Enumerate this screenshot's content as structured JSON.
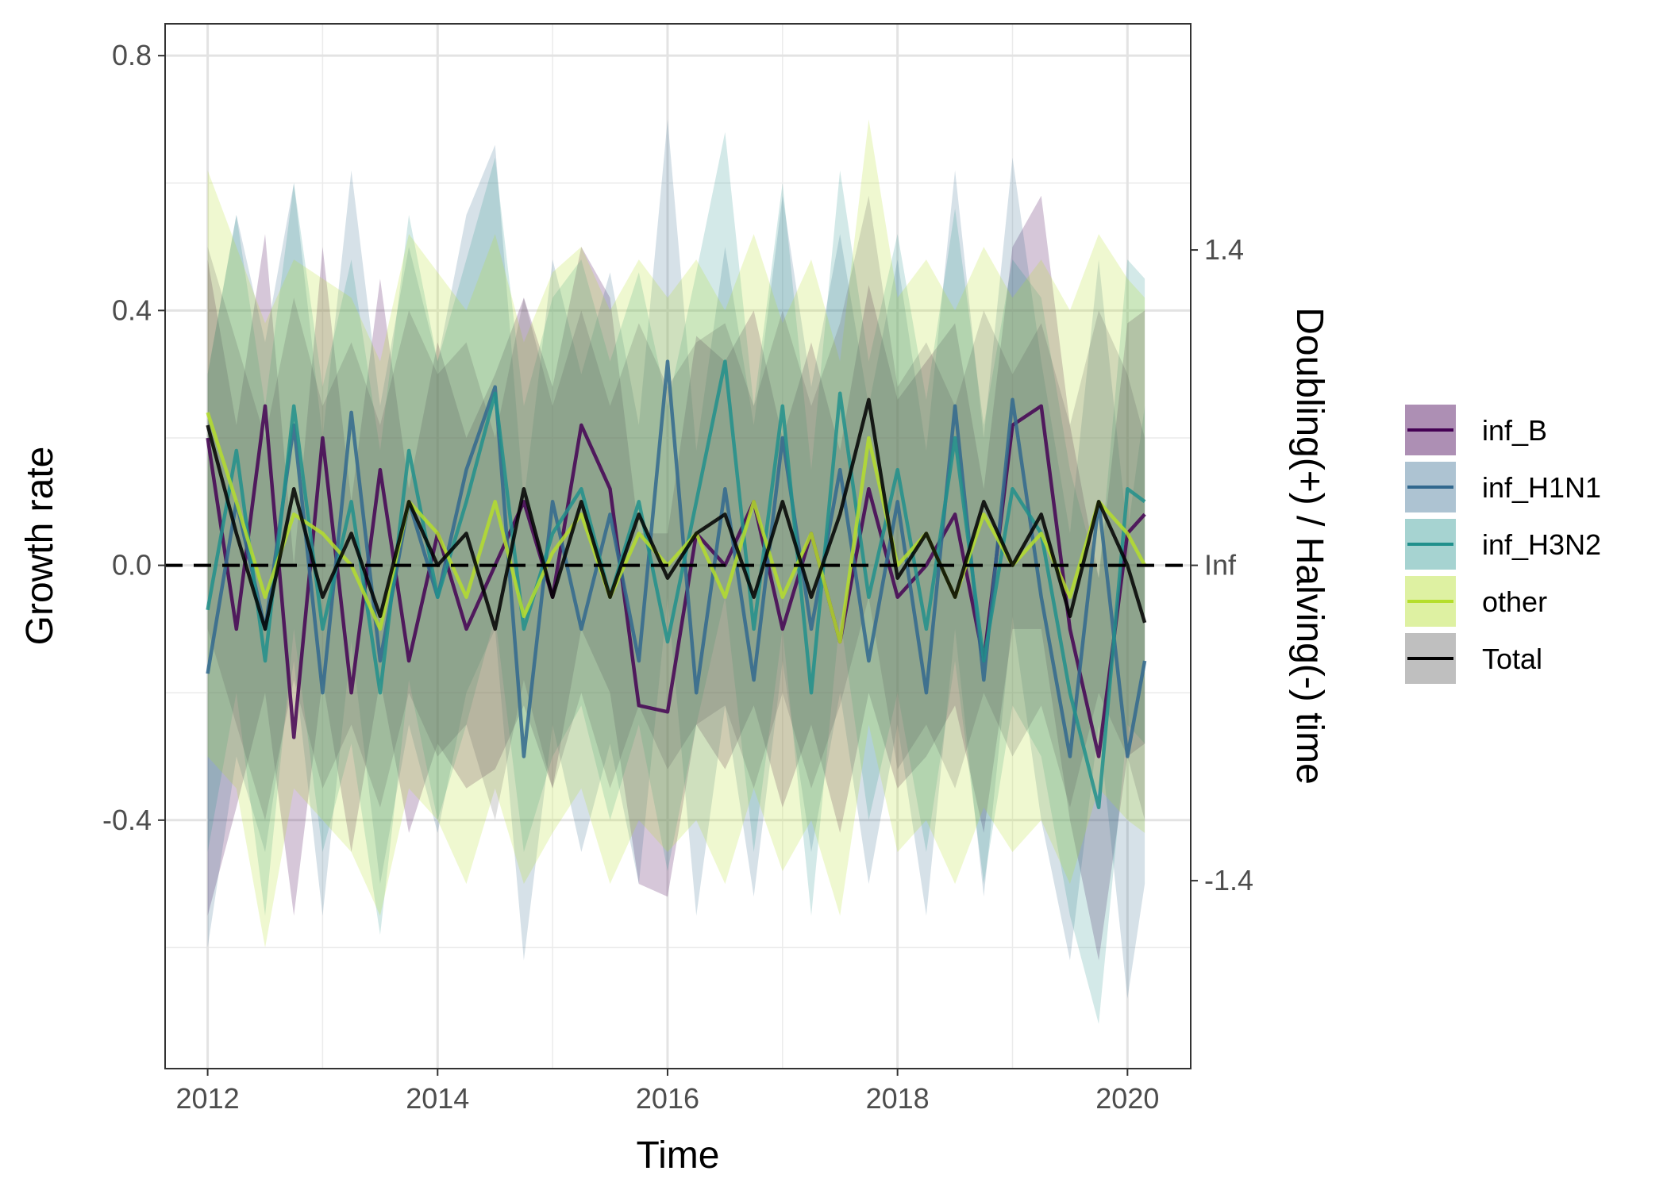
{
  "chart_data": {
    "type": "line",
    "xlabel": "Time",
    "ylabel": "Growth rate",
    "y2label": "Doubling(+) / Halving(-) time",
    "xlim": [
      2011.63,
      2020.55
    ],
    "ylim": [
      -0.79,
      0.85
    ],
    "x_ticks": [
      2012,
      2014,
      2016,
      2018,
      2020
    ],
    "x_tick_labels": [
      "2012",
      "2014",
      "2016",
      "2018",
      "2020"
    ],
    "y_ticks": [
      -0.4,
      0.0,
      0.4,
      0.8
    ],
    "y_tick_labels": [
      "-0.4",
      "0.0",
      "0.4",
      "0.8"
    ],
    "y2_ticks": [
      -0.495,
      0.0,
      0.495
    ],
    "y2_tick_labels": [
      "-1.4",
      "Inf",
      "1.4"
    ],
    "reference_line": {
      "y": 0,
      "style": "dashed",
      "color": "#000000"
    },
    "grid": true,
    "legend": {
      "position": "right",
      "entries": [
        "inf_B",
        "inf_H1N1",
        "inf_H3N2",
        "other",
        "Total"
      ]
    },
    "series": [
      {
        "name": "inf_B",
        "color": "#440154",
        "fill": "#440154",
        "fill_opacity": 0.22,
        "x": [
          2012.0,
          2012.25,
          2012.5,
          2012.75,
          2013.0,
          2013.25,
          2013.5,
          2013.75,
          2014.0,
          2014.25,
          2014.5,
          2014.75,
          2015.0,
          2015.25,
          2015.5,
          2015.75,
          2016.0,
          2016.25,
          2016.5,
          2016.75,
          2017.0,
          2017.25,
          2017.5,
          2017.75,
          2018.0,
          2018.25,
          2018.5,
          2018.75,
          2019.0,
          2019.25,
          2019.5,
          2019.75,
          2020.0,
          2020.15
        ],
        "y": [
          0.2,
          -0.1,
          0.25,
          -0.27,
          0.2,
          -0.2,
          0.15,
          -0.15,
          0.05,
          -0.1,
          0.0,
          0.1,
          -0.05,
          0.22,
          0.12,
          -0.22,
          -0.23,
          0.05,
          0.0,
          0.1,
          -0.1,
          0.05,
          -0.12,
          0.12,
          -0.05,
          0.0,
          0.08,
          -0.15,
          0.22,
          0.25,
          -0.1,
          -0.3,
          0.05,
          0.08
        ],
        "lower": [
          -0.55,
          -0.38,
          -0.2,
          -0.55,
          -0.18,
          -0.45,
          -0.18,
          -0.42,
          -0.28,
          -0.35,
          -0.32,
          -0.22,
          -0.35,
          -0.1,
          -0.2,
          -0.5,
          -0.52,
          -0.25,
          -0.32,
          -0.22,
          -0.38,
          -0.25,
          -0.42,
          -0.2,
          -0.35,
          -0.3,
          -0.22,
          -0.42,
          -0.1,
          -0.1,
          -0.4,
          -0.62,
          -0.3,
          -0.28
        ],
        "upper": [
          0.48,
          0.22,
          0.52,
          0.0,
          0.5,
          0.1,
          0.45,
          0.12,
          0.35,
          0.2,
          0.3,
          0.42,
          0.28,
          0.5,
          0.42,
          0.05,
          0.05,
          0.36,
          0.32,
          0.4,
          0.2,
          0.35,
          0.18,
          0.44,
          0.26,
          0.32,
          0.38,
          0.12,
          0.5,
          0.58,
          0.22,
          -0.02,
          0.38,
          0.4
        ]
      },
      {
        "name": "inf_H1N1",
        "color": "#31688e",
        "fill": "#31688e",
        "fill_opacity": 0.2,
        "x": [
          2012.0,
          2012.25,
          2012.5,
          2012.75,
          2013.0,
          2013.25,
          2013.5,
          2013.75,
          2014.0,
          2014.25,
          2014.5,
          2014.75,
          2015.0,
          2015.25,
          2015.5,
          2015.75,
          2016.0,
          2016.25,
          2016.5,
          2016.75,
          2017.0,
          2017.25,
          2017.5,
          2017.75,
          2018.0,
          2018.25,
          2018.5,
          2018.75,
          2019.0,
          2019.25,
          2019.5,
          2019.75,
          2020.0,
          2020.15
        ],
        "y": [
          -0.17,
          0.1,
          -0.1,
          0.22,
          -0.2,
          0.24,
          -0.15,
          0.1,
          -0.05,
          0.15,
          0.28,
          -0.3,
          0.1,
          -0.1,
          0.08,
          -0.15,
          0.32,
          -0.2,
          0.12,
          -0.18,
          0.2,
          -0.1,
          0.15,
          -0.15,
          0.1,
          -0.2,
          0.25,
          -0.18,
          0.26,
          -0.05,
          -0.3,
          0.1,
          -0.3,
          -0.15
        ],
        "lower": [
          -0.6,
          -0.3,
          -0.45,
          -0.15,
          -0.55,
          -0.12,
          -0.5,
          -0.25,
          -0.42,
          -0.2,
          -0.1,
          -0.62,
          -0.25,
          -0.45,
          -0.28,
          -0.5,
          -0.05,
          -0.55,
          -0.22,
          -0.52,
          -0.15,
          -0.45,
          -0.2,
          -0.5,
          -0.25,
          -0.55,
          -0.1,
          -0.52,
          -0.08,
          -0.4,
          -0.62,
          -0.25,
          -0.68,
          -0.5
        ],
        "upper": [
          0.3,
          0.55,
          0.35,
          0.6,
          0.2,
          0.62,
          0.25,
          0.5,
          0.32,
          0.55,
          0.66,
          0.1,
          0.48,
          0.3,
          0.46,
          0.22,
          0.7,
          0.18,
          0.5,
          0.22,
          0.58,
          0.28,
          0.52,
          0.25,
          0.48,
          0.18,
          0.62,
          0.2,
          0.64,
          0.32,
          0.05,
          0.48,
          0.05,
          0.25
        ]
      },
      {
        "name": "inf_H3N2",
        "color": "#21908c",
        "fill": "#21908c",
        "fill_opacity": 0.2,
        "x": [
          2012.0,
          2012.25,
          2012.5,
          2012.75,
          2013.0,
          2013.25,
          2013.5,
          2013.75,
          2014.0,
          2014.25,
          2014.5,
          2014.75,
          2015.0,
          2015.25,
          2015.5,
          2015.75,
          2016.0,
          2016.25,
          2016.5,
          2016.75,
          2017.0,
          2017.25,
          2017.5,
          2017.75,
          2018.0,
          2018.25,
          2018.5,
          2018.75,
          2019.0,
          2019.25,
          2019.5,
          2019.75,
          2020.0,
          2020.15
        ],
        "y": [
          -0.07,
          0.18,
          -0.15,
          0.25,
          -0.1,
          0.1,
          -0.2,
          0.18,
          -0.05,
          0.1,
          0.27,
          -0.1,
          0.05,
          0.12,
          -0.05,
          0.1,
          -0.12,
          0.1,
          0.32,
          -0.1,
          0.25,
          -0.2,
          0.27,
          -0.05,
          0.15,
          -0.1,
          0.2,
          -0.15,
          0.12,
          0.05,
          -0.2,
          -0.38,
          0.12,
          0.1
        ],
        "lower": [
          -0.45,
          -0.2,
          -0.55,
          -0.1,
          -0.45,
          -0.28,
          -0.58,
          -0.18,
          -0.4,
          -0.25,
          -0.08,
          -0.45,
          -0.3,
          -0.22,
          -0.4,
          -0.25,
          -0.48,
          -0.25,
          -0.05,
          -0.45,
          -0.1,
          -0.55,
          -0.08,
          -0.4,
          -0.2,
          -0.45,
          -0.15,
          -0.5,
          -0.22,
          -0.3,
          -0.55,
          -0.72,
          -0.25,
          -0.28
        ],
        "upper": [
          0.3,
          0.55,
          0.25,
          0.6,
          0.28,
          0.48,
          0.18,
          0.55,
          0.32,
          0.48,
          0.64,
          0.25,
          0.42,
          0.48,
          0.32,
          0.46,
          0.25,
          0.46,
          0.68,
          0.25,
          0.6,
          0.15,
          0.62,
          0.32,
          0.52,
          0.26,
          0.56,
          0.22,
          0.48,
          0.42,
          0.15,
          -0.02,
          0.48,
          0.45
        ]
      },
      {
        "name": "other",
        "color": "#b5de2b",
        "fill": "#b5de2b",
        "fill_opacity": 0.22,
        "x": [
          2012.0,
          2012.25,
          2012.5,
          2012.75,
          2013.0,
          2013.25,
          2013.5,
          2013.75,
          2014.0,
          2014.25,
          2014.5,
          2014.75,
          2015.0,
          2015.25,
          2015.5,
          2015.75,
          2016.0,
          2016.25,
          2016.5,
          2016.75,
          2017.0,
          2017.25,
          2017.5,
          2017.75,
          2018.0,
          2018.25,
          2018.5,
          2018.75,
          2019.0,
          2019.25,
          2019.5,
          2019.75,
          2020.0,
          2020.15
        ],
        "y": [
          0.24,
          0.1,
          -0.05,
          0.08,
          0.05,
          0.0,
          -0.1,
          0.1,
          0.05,
          -0.05,
          0.1,
          -0.08,
          0.02,
          0.08,
          -0.05,
          0.05,
          0.0,
          0.05,
          -0.05,
          0.1,
          -0.05,
          0.05,
          -0.12,
          0.2,
          0.0,
          0.05,
          -0.05,
          0.08,
          0.0,
          0.05,
          -0.05,
          0.1,
          0.05,
          0.0
        ],
        "lower": [
          -0.3,
          -0.35,
          -0.6,
          -0.35,
          -0.4,
          -0.45,
          -0.55,
          -0.35,
          -0.4,
          -0.5,
          -0.35,
          -0.5,
          -0.42,
          -0.35,
          -0.5,
          -0.4,
          -0.45,
          -0.4,
          -0.5,
          -0.35,
          -0.48,
          -0.4,
          -0.55,
          -0.25,
          -0.45,
          -0.4,
          -0.5,
          -0.38,
          -0.45,
          -0.4,
          -0.5,
          -0.35,
          -0.4,
          -0.42
        ],
        "upper": [
          0.62,
          0.5,
          0.38,
          0.48,
          0.45,
          0.42,
          0.32,
          0.52,
          0.46,
          0.4,
          0.52,
          0.35,
          0.46,
          0.5,
          0.4,
          0.48,
          0.42,
          0.48,
          0.4,
          0.52,
          0.38,
          0.48,
          0.32,
          0.7,
          0.42,
          0.48,
          0.4,
          0.5,
          0.42,
          0.48,
          0.4,
          0.52,
          0.45,
          0.42
        ]
      },
      {
        "name": "Total",
        "color": "#000000",
        "fill": "#4d4d4d",
        "fill_opacity": 0.18,
        "x": [
          2012.0,
          2012.25,
          2012.5,
          2012.75,
          2013.0,
          2013.25,
          2013.5,
          2013.75,
          2014.0,
          2014.25,
          2014.5,
          2014.75,
          2015.0,
          2015.25,
          2015.5,
          2015.75,
          2016.0,
          2016.25,
          2016.5,
          2016.75,
          2017.0,
          2017.25,
          2017.5,
          2017.75,
          2018.0,
          2018.25,
          2018.5,
          2018.75,
          2019.0,
          2019.25,
          2019.5,
          2019.75,
          2020.0,
          2020.15
        ],
        "y": [
          0.22,
          0.05,
          -0.1,
          0.12,
          -0.05,
          0.05,
          -0.08,
          0.1,
          0.0,
          0.05,
          -0.1,
          0.12,
          -0.05,
          0.1,
          -0.05,
          0.08,
          -0.02,
          0.05,
          0.08,
          -0.05,
          0.1,
          -0.05,
          0.08,
          0.26,
          -0.02,
          0.05,
          -0.05,
          0.1,
          0.0,
          0.08,
          -0.08,
          0.1,
          0.0,
          -0.09
        ],
        "lower": [
          -0.1,
          -0.25,
          -0.4,
          -0.18,
          -0.35,
          -0.25,
          -0.38,
          -0.2,
          -0.3,
          -0.25,
          -0.4,
          -0.18,
          -0.35,
          -0.2,
          -0.35,
          -0.22,
          -0.32,
          -0.25,
          -0.22,
          -0.35,
          -0.2,
          -0.35,
          -0.22,
          -0.05,
          -0.32,
          -0.25,
          -0.35,
          -0.2,
          -0.3,
          -0.22,
          -0.38,
          -0.2,
          -0.3,
          -0.4
        ],
        "upper": [
          0.5,
          0.35,
          0.2,
          0.42,
          0.25,
          0.35,
          0.22,
          0.4,
          0.3,
          0.35,
          0.2,
          0.42,
          0.25,
          0.4,
          0.25,
          0.38,
          0.28,
          0.35,
          0.38,
          0.25,
          0.4,
          0.25,
          0.38,
          0.58,
          0.28,
          0.35,
          0.25,
          0.4,
          0.3,
          0.38,
          0.22,
          0.4,
          0.3,
          0.2
        ]
      }
    ]
  }
}
